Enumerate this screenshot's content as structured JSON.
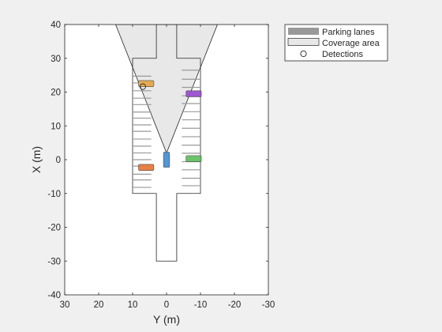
{
  "figure": {
    "background": "#f0f0f0"
  },
  "chart_data": {
    "type": "scatter",
    "title": "",
    "xlabel": "Y (m)",
    "ylabel": "X (m)",
    "xlim": [
      30,
      -30
    ],
    "ylim": [
      -40,
      40
    ],
    "x_reversed": true,
    "grid": false,
    "xticks": [
      30,
      20,
      10,
      0,
      -10,
      -20,
      -30
    ],
    "yticks": [
      40,
      30,
      20,
      10,
      0,
      -10,
      -20,
      -30,
      -40
    ],
    "legend": {
      "placement": "outside-top-right",
      "entries": [
        {
          "label": "Parking lanes",
          "swatch": "patch",
          "fill": "#999999"
        },
        {
          "label": "Coverage area",
          "swatch": "patch",
          "fill": "#e8e8e8"
        },
        {
          "label": "Detections",
          "swatch": "marker-circle",
          "fill": "none"
        }
      ]
    },
    "road_outline": [
      [
        10,
        -10
      ],
      [
        10,
        30
      ],
      [
        3,
        30
      ],
      [
        3,
        40
      ],
      [
        -3,
        40
      ],
      [
        -3,
        30
      ],
      [
        -10,
        30
      ],
      [
        -10,
        -10
      ],
      [
        -3,
        -10
      ],
      [
        -3,
        -30
      ],
      [
        3,
        -30
      ],
      [
        3,
        -10
      ]
    ],
    "coverage_area": {
      "apex": [
        0,
        2
      ],
      "left_edge": [
        15,
        40
      ],
      "right_edge": [
        -15,
        40
      ],
      "color": "#e8e8e8"
    },
    "parking_lines_left_x": [
      24.7,
      22.7,
      20.4,
      18.2,
      16.3,
      14.1,
      12.3,
      10.3,
      8.4,
      6.1,
      4.0,
      2.0,
      0.0,
      -1.9,
      -4.3,
      -6.0,
      -8.2
    ],
    "parking_lines_right_x": [
      26.5,
      23.8,
      21.4,
      18.9,
      16.6,
      14.2,
      11.8,
      9.3,
      6.8,
      4.3,
      1.9,
      -0.6,
      -3.0,
      -5.5,
      -7.7
    ],
    "parking_line_color": "#999999",
    "ego_vehicle": {
      "y": 0,
      "x": 0,
      "length": 4.5,
      "width": 1.8,
      "color": "#4a90d0"
    },
    "vehicles": [
      {
        "y": 6,
        "x": 22.5,
        "length": 4.5,
        "width": 1.8,
        "color": "#e6a74a"
      },
      {
        "y": -8,
        "x": 19.5,
        "length": 4.5,
        "width": 1.8,
        "color": "#9a4fd0"
      },
      {
        "y": -8,
        "x": 0.3,
        "length": 4.5,
        "width": 1.8,
        "color": "#62bf62"
      },
      {
        "y": 6,
        "x": -2.3,
        "length": 4.5,
        "width": 1.8,
        "color": "#e77a3a"
      }
    ],
    "detections": [
      {
        "y": 7,
        "x": 21.6
      }
    ]
  }
}
